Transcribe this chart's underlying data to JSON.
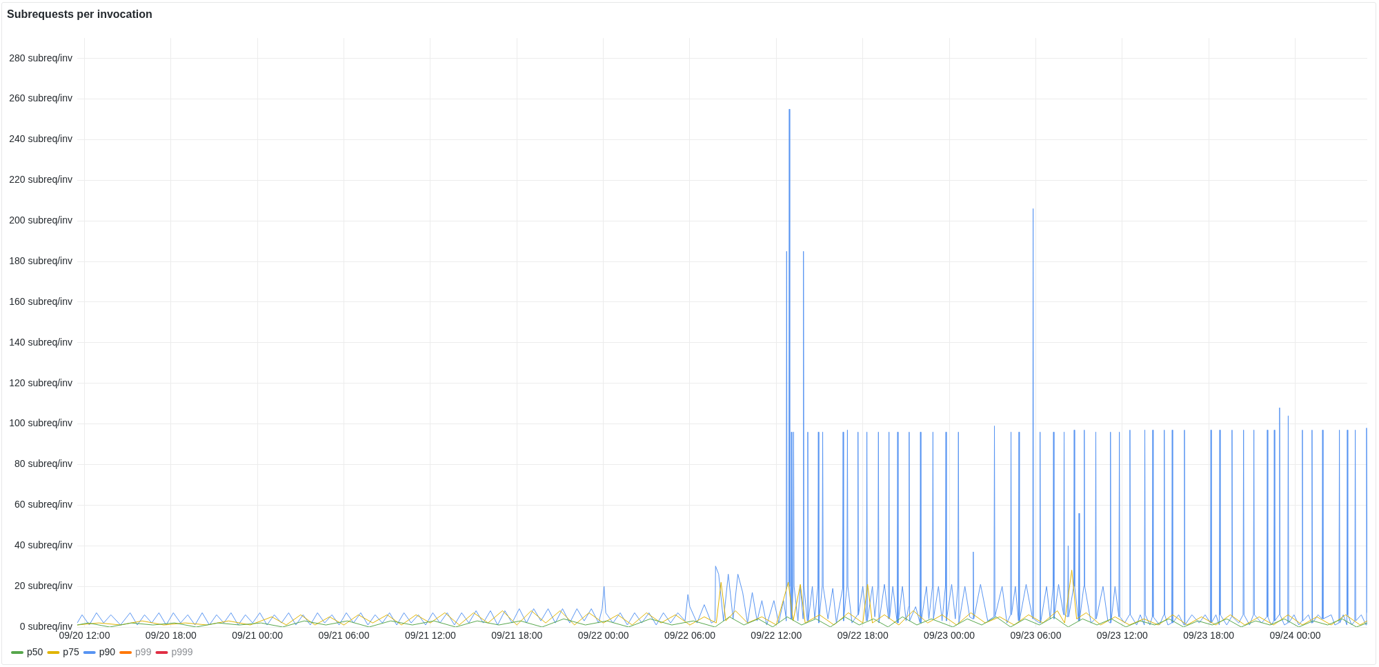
{
  "chart_data": {
    "type": "line",
    "title": "Subrequests per invocation",
    "xlim": [
      "--09-20T11:30",
      "--09-24T05:00"
    ],
    "xticks": [
      {
        "value": "--09-20T12:00",
        "label": "09/20 12:00"
      },
      {
        "value": "--09-20T18:00",
        "label": "09/20 18:00"
      },
      {
        "value": "--09-21T00:00",
        "label": "09/21 00:00"
      },
      {
        "value": "--09-21T06:00",
        "label": "09/21 06:00"
      },
      {
        "value": "--09-21T12:00",
        "label": "09/21 12:00"
      },
      {
        "value": "--09-21T18:00",
        "label": "09/21 18:00"
      },
      {
        "value": "--09-22T00:00",
        "label": "09/22 00:00"
      },
      {
        "value": "--09-22T06:00",
        "label": "09/22 06:00"
      },
      {
        "value": "--09-22T12:00",
        "label": "09/22 12:00"
      },
      {
        "value": "--09-22T18:00",
        "label": "09/22 18:00"
      },
      {
        "value": "--09-23T00:00",
        "label": "09/23 00:00"
      },
      {
        "value": "--09-23T06:00",
        "label": "09/23 06:00"
      },
      {
        "value": "--09-23T12:00",
        "label": "09/23 12:00"
      },
      {
        "value": "--09-23T18:00",
        "label": "09/23 18:00"
      },
      {
        "value": "--09-24T00:00",
        "label": "09/24 00:00"
      }
    ],
    "ylim": [
      0,
      290
    ],
    "yticks": [
      {
        "value": 0,
        "label": "0 subreq/inv"
      },
      {
        "value": 20,
        "label": "20 subreq/inv"
      },
      {
        "value": 40,
        "label": "40 subreq/inv"
      },
      {
        "value": 60,
        "label": "60 subreq/inv"
      },
      {
        "value": 80,
        "label": "80 subreq/inv"
      },
      {
        "value": 100,
        "label": "100 subreq/inv"
      },
      {
        "value": 120,
        "label": "120 subreq/inv"
      },
      {
        "value": 140,
        "label": "140 subreq/inv"
      },
      {
        "value": 160,
        "label": "160 subreq/inv"
      },
      {
        "value": 180,
        "label": "180 subreq/inv"
      },
      {
        "value": 200,
        "label": "200 subreq/inv"
      },
      {
        "value": 220,
        "label": "220 subreq/inv"
      },
      {
        "value": 240,
        "label": "240 subreq/inv"
      },
      {
        "value": 260,
        "label": "260 subreq/inv"
      },
      {
        "value": 280,
        "label": "280 subreq/inv"
      }
    ],
    "grid": true,
    "legend": "bottom left",
    "series": [
      {
        "name": "p50",
        "color": "#56a64b",
        "x": [
          "--09-20T11:30",
          "--09-20T12:15",
          "--09-20T13:45",
          "--09-20T15:15",
          "--09-20T16:45",
          "--09-20T18:15",
          "--09-20T19:45",
          "--09-20T21:15",
          "--09-20T22:45",
          "--09-21T00:15",
          "--09-21T01:45",
          "--09-21T03:15",
          "--09-21T04:45",
          "--09-21T06:15",
          "--09-21T07:45",
          "--09-21T09:15",
          "--09-21T10:45",
          "--09-21T12:15",
          "--09-21T13:45",
          "--09-21T15:15",
          "--09-21T16:45",
          "--09-21T18:15",
          "--09-21T19:45",
          "--09-21T21:15",
          "--09-21T22:45",
          "--09-22T00:15",
          "--09-22T01:45",
          "--09-22T03:15",
          "--09-22T04:45",
          "--09-22T06:15",
          "--09-22T07:45",
          "--09-22T08:45",
          "--09-22T09:45",
          "--09-22T10:45",
          "--09-22T11:45",
          "--09-22T12:45",
          "--09-22T13:45",
          "--09-22T14:45",
          "--09-22T15:45",
          "--09-22T16:45",
          "--09-22T17:45",
          "--09-22T18:45",
          "--09-22T19:45",
          "--09-22T20:45",
          "--09-22T21:45",
          "--09-22T22:45",
          "--09-23T00:15",
          "--09-23T01:15",
          "--09-23T02:15",
          "--09-23T03:15",
          "--09-23T04:15",
          "--09-23T05:15",
          "--09-23T06:15",
          "--09-23T07:15",
          "--09-23T08:15",
          "--09-23T09:15",
          "--09-23T10:15",
          "--09-23T11:15",
          "--09-23T12:15",
          "--09-23T13:15",
          "--09-23T14:15",
          "--09-23T15:15",
          "--09-23T16:15",
          "--09-23T17:15",
          "--09-23T18:15",
          "--09-23T19:15",
          "--09-23T20:15",
          "--09-23T21:15",
          "--09-23T22:15",
          "--09-23T23:15",
          "--09-24T00:15",
          "--09-24T01:15",
          "--09-24T02:15",
          "--09-24T03:15",
          "--09-24T04:15",
          "--09-24T05:00"
        ],
        "values": [
          1,
          2,
          0,
          2,
          1,
          2,
          0,
          2,
          1,
          2,
          0,
          3,
          1,
          3,
          0,
          3,
          1,
          3,
          0,
          3,
          1,
          3,
          0,
          4,
          1,
          3,
          0,
          4,
          1,
          3,
          0,
          5,
          1,
          4,
          0,
          5,
          1,
          4,
          0,
          5,
          1,
          4,
          0,
          5,
          1,
          4,
          0,
          4,
          1,
          5,
          0,
          4,
          1,
          5,
          0,
          4,
          1,
          4,
          0,
          3,
          1,
          4,
          0,
          3,
          1,
          4,
          0,
          3,
          1,
          4,
          0,
          3,
          1,
          4,
          0,
          2
        ]
      },
      {
        "name": "p75",
        "color": "#e0b400",
        "x": [
          "--09-20T11:30",
          "--09-20T13:00",
          "--09-20T14:30",
          "--09-20T16:00",
          "--09-20T17:30",
          "--09-20T19:00",
          "--09-20T20:30",
          "--09-20T22:00",
          "--09-20T23:30",
          "--09-21T01:00",
          "--09-21T02:00",
          "--09-21T03:00",
          "--09-21T04:00",
          "--09-21T05:00",
          "--09-21T06:00",
          "--09-21T07:00",
          "--09-21T08:00",
          "--09-21T09:00",
          "--09-21T10:00",
          "--09-21T11:00",
          "--09-21T12:00",
          "--09-21T13:00",
          "--09-21T14:00",
          "--09-21T15:00",
          "--09-21T16:00",
          "--09-21T17:00",
          "--09-21T18:00",
          "--09-21T19:00",
          "--09-21T20:00",
          "--09-21T21:00",
          "--09-21T22:00",
          "--09-21T23:00",
          "--09-22T00:00",
          "--09-22T01:00",
          "--09-22T02:00",
          "--09-22T03:00",
          "--09-22T04:00",
          "--09-22T05:00",
          "--09-22T06:00",
          "--09-22T07:00",
          "--09-22T07:50",
          "--09-22T08:10",
          "--09-22T08:30",
          "--09-22T09:10",
          "--09-22T10:00",
          "--09-22T11:00",
          "--09-22T12:00",
          "--09-22T12:50",
          "--09-22T13:10",
          "--09-22T13:40",
          "--09-22T14:00",
          "--09-22T15:00",
          "--09-22T16:00",
          "--09-22T17:00",
          "--09-22T18:00",
          "--09-22T18:20",
          "--09-22T18:40",
          "--09-22T19:30",
          "--09-22T20:30",
          "--09-22T21:30",
          "--09-22T22:30",
          "--09-22T23:30",
          "--09-23T00:30",
          "--09-23T01:30",
          "--09-23T02:30",
          "--09-23T03:30",
          "--09-23T04:30",
          "--09-23T05:30",
          "--09-23T06:30",
          "--09-23T07:30",
          "--09-23T08:00",
          "--09-23T08:30",
          "--09-23T08:50",
          "--09-23T09:30",
          "--09-23T10:30",
          "--09-23T11:30",
          "--09-23T12:30",
          "--09-23T13:30",
          "--09-23T14:30",
          "--09-23T15:30",
          "--09-23T16:30",
          "--09-23T17:30",
          "--09-23T18:30",
          "--09-23T19:30",
          "--09-23T20:30",
          "--09-23T21:30",
          "--09-23T22:30",
          "--09-23T23:30",
          "--09-24T00:30",
          "--09-24T01:30",
          "--09-24T02:30",
          "--09-24T03:30",
          "--09-24T04:30",
          "--09-24T05:00"
        ],
        "values": [
          1,
          2,
          1,
          3,
          1,
          2,
          1,
          3,
          1,
          5,
          1,
          6,
          1,
          5,
          1,
          6,
          2,
          6,
          1,
          6,
          2,
          7,
          1,
          7,
          2,
          8,
          1,
          8,
          2,
          8,
          1,
          7,
          2,
          6,
          1,
          7,
          2,
          6,
          1,
          5,
          2,
          22,
          3,
          8,
          2,
          5,
          1,
          22,
          3,
          21,
          2,
          6,
          1,
          7,
          2,
          21,
          2,
          6,
          1,
          8,
          2,
          6,
          1,
          7,
          2,
          5,
          1,
          6,
          2,
          8,
          2,
          28,
          4,
          7,
          1,
          5,
          1,
          4,
          1,
          6,
          1,
          5,
          1,
          6,
          1,
          5,
          1,
          6,
          1,
          5,
          1,
          6,
          1,
          3
        ]
      },
      {
        "name": "p90",
        "color": "#5794f2",
        "x": [
          "--09-20T11:30",
          "--09-20T11:50",
          "--09-20T12:20",
          "--09-20T12:50",
          "--09-20T13:20",
          "--09-20T13:50",
          "--09-20T14:30",
          "--09-20T15:10",
          "--09-20T15:40",
          "--09-20T16:10",
          "--09-20T16:40",
          "--09-20T17:10",
          "--09-20T17:40",
          "--09-20T18:10",
          "--09-20T18:40",
          "--09-20T19:10",
          "--09-20T19:40",
          "--09-20T20:10",
          "--09-20T20:40",
          "--09-20T21:10",
          "--09-20T21:40",
          "--09-20T22:10",
          "--09-20T22:40",
          "--09-20T23:10",
          "--09-20T23:40",
          "--09-21T00:10",
          "--09-21T00:40",
          "--09-21T01:10",
          "--09-21T01:40",
          "--09-21T02:10",
          "--09-21T02:40",
          "--09-21T03:10",
          "--09-21T03:40",
          "--09-21T04:10",
          "--09-21T04:40",
          "--09-21T05:10",
          "--09-21T05:40",
          "--09-21T06:10",
          "--09-21T06:40",
          "--09-21T07:10",
          "--09-21T07:40",
          "--09-21T08:10",
          "--09-21T08:40",
          "--09-21T09:10",
          "--09-21T09:40",
          "--09-21T10:10",
          "--09-21T10:40",
          "--09-21T11:10",
          "--09-21T11:40",
          "--09-21T12:10",
          "--09-21T12:40",
          "--09-21T13:10",
          "--09-21T13:40",
          "--09-21T14:10",
          "--09-21T14:40",
          "--09-21T15:10",
          "--09-21T15:40",
          "--09-21T16:10",
          "--09-21T16:40",
          "--09-21T17:10",
          "--09-21T17:40",
          "--09-21T18:10",
          "--09-21T18:40",
          "--09-21T19:10",
          "--09-21T19:40",
          "--09-21T20:10",
          "--09-21T20:40",
          "--09-21T21:10",
          "--09-21T21:40",
          "--09-21T22:10",
          "--09-21T22:40",
          "--09-21T23:10",
          "--09-21T23:40",
          "--09-21T23:55",
          "--09-22T00:03",
          "--09-22T00:10",
          "--09-22T00:40",
          "--09-22T01:10",
          "--09-22T01:40",
          "--09-22T02:10",
          "--09-22T02:40",
          "--09-22T03:10",
          "--09-22T03:40",
          "--09-22T04:10",
          "--09-22T04:40",
          "--09-22T05:10",
          "--09-22T05:40",
          "--09-22T05:52",
          "--09-22T06:00",
          "--09-22T06:30",
          "--09-22T07:00",
          "--09-22T07:30",
          "--09-22T07:45",
          "--09-22T07:47",
          "--09-22T08:00",
          "--09-22T08:20",
          "--09-22T08:40",
          "--09-22T09:00",
          "--09-22T09:20",
          "--09-22T09:40",
          "--09-22T10:00",
          "--09-22T10:20",
          "--09-22T10:40",
          "--09-22T11:00",
          "--09-22T11:20",
          "--09-22T11:50",
          "--09-22T12:10",
          "--09-22T12:30",
          "--09-22T12:40",
          "--09-22T12:41",
          "--09-22T12:43",
          "--09-22T12:45",
          "--09-22T12:52",
          "--09-22T12:54",
          "--09-22T12:56",
          "--09-22T13:01",
          "--09-22T13:03",
          "--09-22T13:05",
          "--09-22T13:10",
          "--09-22T13:12",
          "--09-22T13:14",
          "--09-22T13:30",
          "--09-22T13:40",
          "--09-22T13:51",
          "--09-22T13:53",
          "--09-22T13:55",
          "--09-22T14:09",
          "--09-22T14:11",
          "--09-22T14:13",
          "--09-22T14:30",
          "--09-22T14:40",
          "--09-22T14:53",
          "--09-22T14:55",
          "--09-22T14:57",
          "--09-22T15:11",
          "--09-22T15:13",
          "--09-22T15:15",
          "--09-22T15:35",
          "--09-22T15:55",
          "--09-22T16:10",
          "--09-22T16:36",
          "--09-22T16:38",
          "--09-22T16:40",
          "--09-22T16:54",
          "--09-22T16:56",
          "--09-22T16:58",
          "--09-22T17:15",
          "--09-22T17:38",
          "--09-22T17:40",
          "--09-22T17:42",
          "--09-22T18:00",
          "--09-22T18:15",
          "--09-22T18:17",
          "--09-22T18:19",
          "--09-22T18:40",
          "--09-22T18:50",
          "--09-22T19:03",
          "--09-22T19:05",
          "--09-22T19:07",
          "--09-22T19:30",
          "--09-22T19:47",
          "--09-22T19:49",
          "--09-22T19:51",
          "--09-22T20:05",
          "--09-22T20:23",
          "--09-22T20:25",
          "--09-22T20:27",
          "--09-22T20:45",
          "--09-22T21:00",
          "--09-22T21:11",
          "--09-22T21:13",
          "--09-22T21:15",
          "--09-22T21:40",
          "--09-22T21:58",
          "--09-22T22:00",
          "--09-22T22:02",
          "--09-22T22:25",
          "--09-22T22:35",
          "--09-22T22:50",
          "--09-22T22:52",
          "--09-22T22:54",
          "--09-22T23:15",
          "--09-22T23:30",
          "--09-22T23:44",
          "--09-22T23:46",
          "--09-22T23:48",
          "--09-23T00:10",
          "--09-23T00:25",
          "--09-23T00:36",
          "--09-23T00:38",
          "--09-23T00:40",
          "--09-23T01:05",
          "--09-23T01:25",
          "--09-23T01:38",
          "--09-23T01:40",
          "--09-23T01:42",
          "--09-23T02:10",
          "--09-23T02:40",
          "--09-23T03:06",
          "--09-23T03:08",
          "--09-23T03:10",
          "--09-23T03:40",
          "--09-23T04:00",
          "--09-23T04:15",
          "--09-23T04:17",
          "--09-23T04:19",
          "--09-23T04:35",
          "--09-23T04:48",
          "--09-23T04:50",
          "--09-23T04:52",
          "--09-23T05:20",
          "--09-23T05:47",
          "--09-23T05:49",
          "--09-23T05:51",
          "--09-23T06:16",
          "--09-23T06:18",
          "--09-23T06:20",
          "--09-23T06:45",
          "--09-23T07:00",
          "--09-23T07:12",
          "--09-23T07:14",
          "--09-23T07:16",
          "--09-23T07:35",
          "--09-23T07:56",
          "--09-23T07:58",
          "--09-23T08:00",
          "--09-23T08:13",
          "--09-23T08:15",
          "--09-23T08:17",
          "--09-23T08:38",
          "--09-23T08:40",
          "--09-23T08:42",
          "--09-23T08:58",
          "--09-23T09:00",
          "--09-23T09:02",
          "--09-23T09:20",
          "--09-23T09:22",
          "--09-23T09:24",
          "--09-23T09:50",
          "--09-23T10:08",
          "--09-23T10:10",
          "--09-23T10:12",
          "--09-23T10:40",
          "--09-23T11:00",
          "--09-23T11:09",
          "--09-23T11:11",
          "--09-23T11:13",
          "--09-23T11:30",
          "--09-23T11:46",
          "--09-23T11:48",
          "--09-23T11:50",
          "--09-23T12:10",
          "--09-23T12:30",
          "--09-23T12:32",
          "--09-23T12:34",
          "--09-23T13:00",
          "--09-23T13:15",
          "--09-23T13:32",
          "--09-23T13:34",
          "--09-23T13:36",
          "--09-23T13:55",
          "--09-23T14:05",
          "--09-23T14:07",
          "--09-23T14:09",
          "--09-23T14:35",
          "--09-23T14:53",
          "--09-23T14:55",
          "--09-23T14:57",
          "--09-23T15:10",
          "--09-23T15:26",
          "--09-23T15:28",
          "--09-23T15:30",
          "--09-23T15:55",
          "--09-23T16:17",
          "--09-23T16:19",
          "--09-23T16:21",
          "--09-23T16:50",
          "--09-23T17:20",
          "--09-23T17:45",
          "--09-23T18:07",
          "--09-23T18:09",
          "--09-23T18:11",
          "--09-23T18:30",
          "--09-23T18:44",
          "--09-23T18:46",
          "--09-23T18:48",
          "--09-23T19:15",
          "--09-23T19:35",
          "--09-23T19:37",
          "--09-23T19:39",
          "--09-23T20:05",
          "--09-23T20:23",
          "--09-23T20:25",
          "--09-23T20:27",
          "--09-23T20:50",
          "--09-23T21:06",
          "--09-23T21:08",
          "--09-23T21:10",
          "--09-23T21:40",
          "--09-23T22:02",
          "--09-23T22:04",
          "--09-23T22:06",
          "--09-23T22:20",
          "--09-23T22:31",
          "--09-23T22:33",
          "--09-23T22:35",
          "--09-23T22:53",
          "--09-23T22:55",
          "--09-23T22:57",
          "--09-23T23:15",
          "--09-23T23:29",
          "--09-23T23:31",
          "--09-23T23:33",
          "--09-23T23:55",
          "--09-24T00:15",
          "--09-24T00:28",
          "--09-24T00:30",
          "--09-24T00:32",
          "--09-24T00:55",
          "--09-24T01:08",
          "--09-24T01:10",
          "--09-24T01:12",
          "--09-24T01:35",
          "--09-24T01:52",
          "--09-24T01:54",
          "--09-24T01:56",
          "--09-24T02:30",
          "--09-24T02:45",
          "--09-24T03:02",
          "--09-24T03:04",
          "--09-24T03:06",
          "--09-24T03:20",
          "--09-24T03:35",
          "--09-24T03:37",
          "--09-24T03:39",
          "--09-24T03:55",
          "--09-24T04:08",
          "--09-24T04:10",
          "--09-24T04:12",
          "--09-24T04:35",
          "--09-24T04:55",
          "--09-24T04:57",
          "--09-24T05:00"
        ],
        "values": [
          2,
          6,
          1,
          7,
          2,
          6,
          1,
          7,
          1,
          6,
          2,
          7,
          1,
          7,
          2,
          6,
          1,
          7,
          1,
          6,
          2,
          7,
          1,
          6,
          2,
          7,
          1,
          6,
          2,
          7,
          1,
          6,
          1,
          7,
          2,
          6,
          1,
          7,
          2,
          7,
          1,
          6,
          2,
          7,
          1,
          7,
          2,
          6,
          1,
          7,
          2,
          7,
          1,
          7,
          2,
          8,
          2,
          8,
          1,
          8,
          2,
          9,
          2,
          9,
          3,
          9,
          2,
          9,
          2,
          9,
          3,
          9,
          2,
          9,
          20,
          7,
          2,
          7,
          1,
          7,
          2,
          7,
          1,
          7,
          2,
          7,
          3,
          16,
          10,
          2,
          11,
          2,
          3,
          30,
          26,
          3,
          26,
          4,
          26,
          17,
          2,
          17,
          3,
          13,
          1,
          13,
          2,
          13,
          5,
          3,
          185,
          20,
          22,
          255,
          20,
          4,
          96,
          4,
          20,
          96,
          20,
          3,
          20,
          4,
          185,
          20,
          3,
          96,
          3,
          20,
          4,
          20,
          96,
          2,
          20,
          96,
          20,
          4,
          19,
          2,
          19,
          96,
          3,
          20,
          97,
          20,
          2,
          6,
          96,
          6,
          20,
          3,
          96,
          3,
          20,
          5,
          20,
          96,
          2,
          21,
          4,
          96,
          4,
          20,
          2,
          96,
          2,
          20,
          3,
          10,
          96,
          3,
          10,
          2,
          96,
          2,
          20,
          4,
          20,
          96,
          4,
          20,
          3,
          20,
          96,
          3,
          21,
          4,
          20,
          96,
          2,
          20,
          5,
          4,
          37,
          4,
          21,
          3,
          5,
          99,
          5,
          20,
          2,
          6,
          96,
          6,
          20,
          3,
          96,
          3,
          21,
          4,
          206,
          4,
          2,
          96,
          2,
          20,
          4,
          20,
          96,
          4,
          21,
          6,
          96,
          6,
          5,
          40,
          5,
          20,
          97,
          20,
          3,
          56,
          3,
          20,
          97,
          20,
          2,
          4,
          96,
          4,
          20,
          3,
          2,
          96,
          2,
          20,
          5,
          96,
          5,
          2,
          6,
          97,
          6,
          1,
          6,
          1,
          97,
          6,
          1,
          5,
          97,
          5,
          1,
          6,
          97,
          6,
          1,
          2,
          97,
          2,
          6,
          1,
          97,
          1,
          6,
          2,
          6,
          2,
          97,
          2,
          6,
          1,
          97,
          6,
          1,
          5,
          97,
          5,
          2,
          6,
          97,
          6,
          1,
          6,
          97,
          6,
          2,
          5,
          97,
          5,
          1,
          3,
          97,
          3,
          6,
          108,
          6,
          1,
          2,
          104,
          2,
          6,
          1,
          3,
          97,
          3,
          6,
          2,
          97,
          2,
          6,
          4,
          97,
          4,
          6,
          1,
          2,
          97,
          2,
          6,
          1,
          97,
          6,
          1,
          3,
          97,
          3,
          6,
          1,
          98,
          7
        ]
      },
      {
        "name": "p99",
        "color": "#ff780a"
      },
      {
        "name": "p999",
        "color": "#e02f44"
      }
    ]
  }
}
